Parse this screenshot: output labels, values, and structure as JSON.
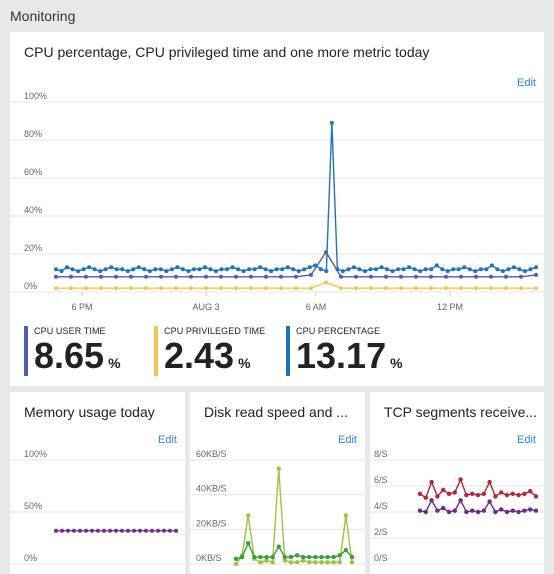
{
  "section_title": "Monitoring",
  "main_tile": {
    "title": "CPU percentage, CPU privileged time and one more metric today",
    "edit_label": "Edit",
    "legend": [
      {
        "label": "CPU USER TIME",
        "value": "8.65",
        "unit": "%",
        "color": "#4e5fad"
      },
      {
        "label": "CPU PRIVILEGED TIME",
        "value": "2.43",
        "unit": "%",
        "color": "#f2c94c"
      },
      {
        "label": "CPU PERCENTAGE",
        "value": "13.17",
        "unit": "%",
        "color": "#1e73be"
      }
    ]
  },
  "memory_tile": {
    "title": "Memory usage today",
    "edit_label": "Edit"
  },
  "disk_tile": {
    "title": "Disk read speed and ...",
    "edit_label": "Edit"
  },
  "tcp_tile": {
    "title": "TCP segments receive...",
    "edit_label": "Edit"
  },
  "chart_data": [
    {
      "type": "line",
      "ylim": [
        0,
        100
      ],
      "y_ticks": [
        "100%",
        "80%",
        "60%",
        "40%",
        "20%",
        "0%"
      ],
      "x_ticks": [
        "6 PM",
        "AUG 3",
        "6 AM",
        "12 PM"
      ],
      "series": [
        {
          "name": "CPU PERCENTAGE",
          "color": "#1e73be",
          "values": [
            12,
            11,
            13,
            12,
            11,
            12,
            13,
            12,
            11,
            12,
            13,
            12,
            12,
            11,
            12,
            13,
            12,
            11,
            12,
            12,
            11,
            12,
            13,
            12,
            11,
            12,
            12,
            13,
            12,
            11,
            12,
            12,
            13,
            12,
            11,
            12,
            12,
            13,
            12,
            11,
            12,
            12,
            13,
            12,
            11,
            12,
            13,
            14,
            12,
            11,
            89,
            12,
            11,
            12,
            13,
            12,
            11,
            12,
            12,
            13,
            12,
            11,
            12,
            12,
            13,
            12,
            11,
            12,
            12,
            14,
            12,
            11,
            12,
            12,
            13,
            12,
            11,
            12,
            12,
            14,
            12,
            11,
            12,
            13,
            12,
            11,
            12,
            13
          ]
        },
        {
          "name": "CPU USER TIME",
          "color": "#4e5fad",
          "values": [
            8,
            8,
            8,
            8,
            8,
            8,
            8,
            8,
            8,
            8,
            8,
            8,
            8,
            8,
            8,
            8,
            8,
            9,
            21,
            8,
            8,
            8,
            8,
            8,
            8,
            8,
            8,
            8,
            8,
            8,
            8,
            8,
            9
          ]
        },
        {
          "name": "CPU PRIVILEGED TIME",
          "color": "#f2c94c",
          "values": [
            2,
            2,
            2,
            2,
            2,
            2,
            2,
            2,
            2,
            2,
            2,
            2,
            2,
            2,
            2,
            2,
            2,
            2,
            5,
            2,
            2,
            2,
            2,
            2,
            2,
            2,
            2,
            2,
            2,
            2,
            2,
            2,
            2
          ]
        }
      ]
    },
    {
      "type": "line",
      "ylim": [
        0,
        100
      ],
      "y_ticks": [
        "100%",
        "50%",
        "0%"
      ],
      "series": [
        {
          "name": "",
          "color": "#7a2a8a",
          "values": [
            32,
            32,
            32,
            32,
            32,
            32,
            32,
            32,
            32,
            32,
            32,
            32,
            32,
            32,
            32,
            32,
            32,
            32,
            32,
            32,
            32
          ]
        }
      ]
    },
    {
      "type": "line",
      "ylim": [
        0,
        60
      ],
      "y_ticks": [
        "60KB/S",
        "40KB/S",
        "20KB/S",
        "0KB/S"
      ],
      "series": [
        {
          "name": "",
          "color": "#9bc53d",
          "values": [
            0,
            5,
            28,
            3,
            1,
            2,
            1,
            55,
            2,
            1,
            1,
            2,
            1,
            1,
            1,
            1,
            1,
            1,
            28,
            1
          ]
        },
        {
          "name": "",
          "color": "#3a9e3a",
          "values": [
            3,
            4,
            12,
            4,
            4,
            4,
            4,
            10,
            4,
            4,
            5,
            4,
            4,
            4,
            4,
            4,
            4,
            5,
            8,
            4
          ]
        }
      ]
    },
    {
      "type": "line",
      "ylim": [
        0,
        8
      ],
      "y_ticks": [
        "8/S",
        "6/S",
        "4/S",
        "2/S",
        "0/S"
      ],
      "series": [
        {
          "name": "",
          "color": "#b5263a",
          "values": [
            5.4,
            5.1,
            6.3,
            5.2,
            5.7,
            5.4,
            5.5,
            6.5,
            5.3,
            5.4,
            5.3,
            5.4,
            6.3,
            5.2,
            5.5,
            5.3,
            5.4,
            5.3,
            5.4,
            5.6,
            5.2
          ]
        },
        {
          "name": "",
          "color": "#6a2c8a",
          "values": [
            4.1,
            4.0,
            4.9,
            4.1,
            4.3,
            4.0,
            4.1,
            4.9,
            4.0,
            4.1,
            4.0,
            4.1,
            4.8,
            4.0,
            4.2,
            4.0,
            4.1,
            4.0,
            4.1,
            4.2,
            4.1
          ]
        }
      ]
    }
  ]
}
